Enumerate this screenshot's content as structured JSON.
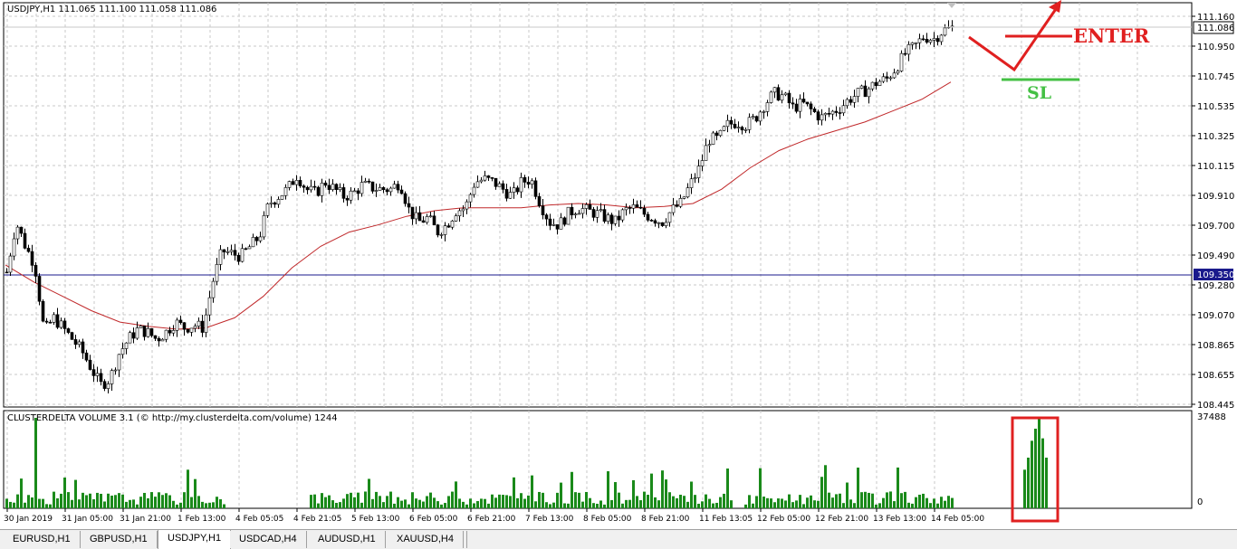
{
  "header": {
    "symbol_info": "USDJPY,H1  111.065 111.100 111.058 111.086"
  },
  "indicator": {
    "title": "CLUSTERDELTA VOLUME 3.1 (© http://my.clusterdelta.com/volume) 1244",
    "max_label": "37488",
    "zero_label": "0"
  },
  "price_axis": {
    "labels": [
      "111.160",
      "110.950",
      "110.745",
      "110.535",
      "110.325",
      "110.115",
      "109.910",
      "109.700",
      "109.490",
      "109.280",
      "109.070",
      "108.865",
      "108.655",
      "108.445"
    ],
    "current_price": "111.086",
    "hline_price": "109.350"
  },
  "time_axis": {
    "labels": [
      "30 Jan 2019",
      "31 Jan 05:00",
      "31 Jan 21:00",
      "1 Feb 13:00",
      "4 Feb 05:05",
      "4 Feb 21:05",
      "5 Feb 13:00",
      "6 Feb 05:00",
      "6 Feb 21:00",
      "7 Feb 13:00",
      "8 Feb 05:00",
      "8 Feb 21:00",
      "11 Feb 13:05",
      "12 Feb 05:00",
      "12 Feb 21:00",
      "13 Feb 13:00",
      "14 Feb 05:00"
    ]
  },
  "annotations": {
    "enter_label": "ENTER",
    "sl_label": "SL"
  },
  "colors": {
    "bull": "#ffffff",
    "bear": "#000000",
    "ma": "#c0282a",
    "hline": "#1a1a8c",
    "volume": "#1a8a1a",
    "enter": "#e02020",
    "sl": "#44c044",
    "box": "#e02020",
    "grid": "#c8c8c8"
  },
  "chart_data": {
    "type": "candlestick",
    "price_range": [
      108.445,
      111.16
    ],
    "hline": 109.35,
    "close_path": [
      109.37,
      109.72,
      109.55,
      109.42,
      108.95,
      109.05,
      108.98,
      108.9,
      108.82,
      108.7,
      108.58,
      108.62,
      108.8,
      108.9,
      108.97,
      108.95,
      108.9,
      108.95,
      109.02,
      108.98,
      109.0,
      108.98,
      109.3,
      109.52,
      109.5,
      109.48,
      109.55,
      109.62,
      109.85,
      109.9,
      109.95,
      110.05,
      109.95,
      109.92,
      110.0,
      109.95,
      109.9,
      109.92,
      109.98,
      109.96,
      109.95,
      109.95,
      110.0,
      109.8,
      109.72,
      109.75,
      109.65,
      109.7,
      109.8,
      109.82,
      110.0,
      110.02,
      110.0,
      109.95,
      109.9,
      110.0,
      110.02,
      109.85,
      109.72,
      109.7,
      109.78,
      109.82,
      109.8,
      109.78,
      109.75,
      109.72,
      109.8,
      109.82,
      109.78,
      109.75,
      109.72,
      109.8,
      109.85,
      109.98,
      110.1,
      110.3,
      110.3,
      110.4,
      110.42,
      110.4,
      110.45,
      110.55,
      110.62,
      110.6,
      110.52,
      110.55,
      110.5,
      110.45,
      110.48,
      110.52,
      110.58,
      110.62,
      110.65,
      110.7,
      110.72,
      110.8,
      110.9,
      110.95,
      111.02,
      111.0,
      111.06,
      111.08
    ],
    "ma_path": [
      109.42,
      109.3,
      109.2,
      109.1,
      109.02,
      108.99,
      108.97,
      108.98,
      109.05,
      109.2,
      109.4,
      109.55,
      109.65,
      109.7,
      109.76,
      109.8,
      109.82,
      109.82,
      109.82,
      109.84,
      109.85,
      109.84,
      109.82,
      109.83,
      109.85,
      109.95,
      110.1,
      110.22,
      110.3,
      110.36,
      110.42,
      110.5,
      110.58,
      110.7
    ],
    "volume_max": 37488,
    "volume_highlight": [
      16000,
      21000,
      28000,
      33000,
      37000,
      29000,
      21000
    ]
  }
}
